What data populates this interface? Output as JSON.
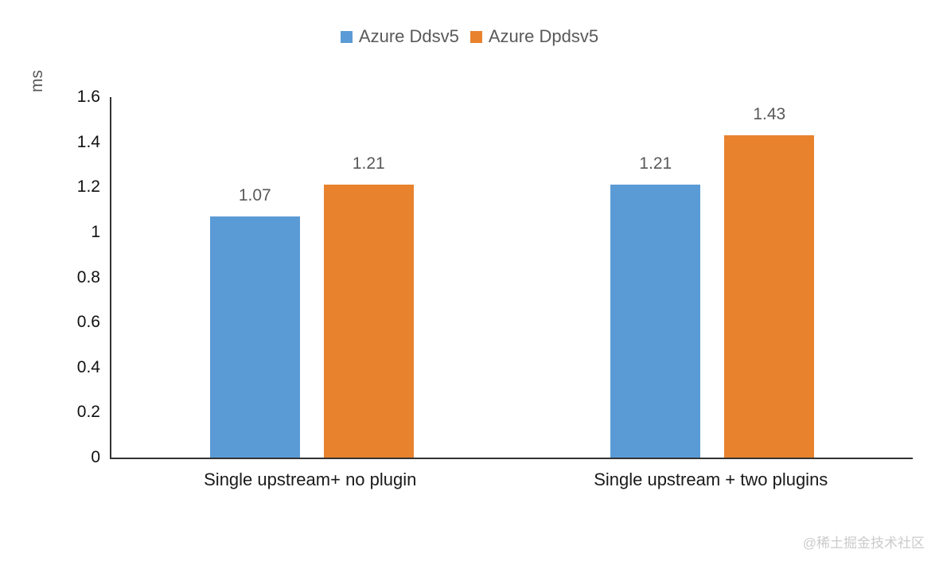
{
  "chart_data": {
    "type": "bar",
    "categories": [
      "Single upstream+ no plugin",
      "Single upstream + two plugins"
    ],
    "series": [
      {
        "name": "Azure Ddsv5",
        "color": "#5B9BD5",
        "values": [
          1.07,
          1.21
        ],
        "value_labels": [
          "1.07",
          "1.21"
        ]
      },
      {
        "name": "Azure Dpdsv5",
        "color": "#E8822D",
        "values": [
          1.21,
          1.43
        ],
        "value_labels": [
          "1.21",
          "1.43"
        ]
      }
    ],
    "xlabel": "",
    "ylabel": "ms",
    "ylim": [
      0,
      1.6
    ],
    "yticks": [
      0,
      0.2,
      0.4,
      0.6,
      0.8,
      1,
      1.2,
      1.4,
      1.6
    ],
    "ytick_labels": [
      "0",
      "0.2",
      "0.4",
      "0.6",
      "0.8",
      "1",
      "1.2",
      "1.4",
      "1.6"
    ],
    "grid": false,
    "legend_position": "top"
  },
  "watermark": "@稀土掘金技术社区"
}
